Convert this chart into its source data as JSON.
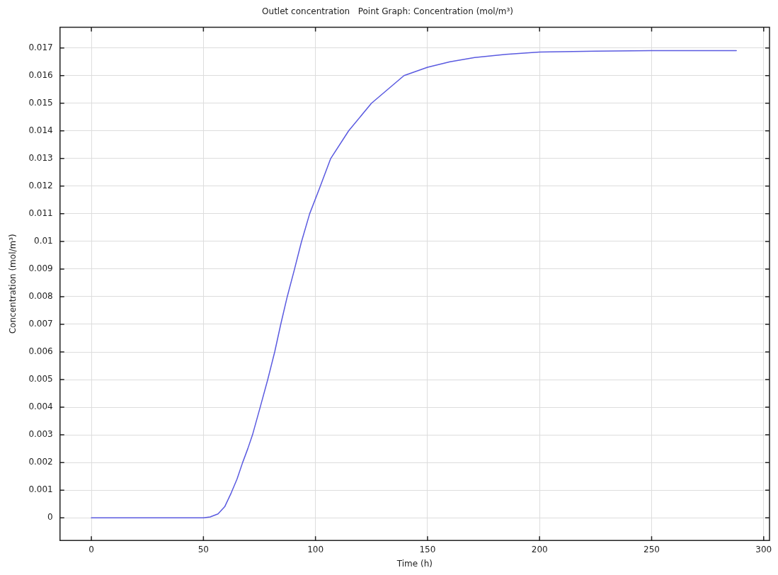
{
  "chart_data": {
    "type": "line",
    "title": "Outlet concentration   Point Graph: Concentration (mol/m³)",
    "xlabel": "Time (h)",
    "ylabel": "Concentration (mol/m³)",
    "xlim": [
      -14,
      302.6
    ],
    "xticks": [
      0,
      50,
      100,
      150,
      200,
      250,
      300
    ],
    "ylim": [
      -0.00082,
      0.01775
    ],
    "yticks": [
      0,
      0.001,
      0.002,
      0.003,
      0.004,
      0.005,
      0.006,
      0.007,
      0.008,
      0.009,
      0.01,
      0.011,
      0.012,
      0.013,
      0.014,
      0.015,
      0.016,
      0.017
    ],
    "grid": true,
    "legend": false,
    "marker": "none",
    "line_style": "solid",
    "series": [
      {
        "color": "#5a5ae0",
        "x": [
          0,
          25,
          50,
          53,
          56.5,
          59.5,
          62.4,
          65,
          67.5,
          69.8,
          71.9,
          75.5,
          78.7,
          81.8,
          84.5,
          87.4,
          90.5,
          93.7,
          97.4,
          101.7,
          106.8,
          114.8,
          125,
          139.5,
          150,
          160,
          171,
          185,
          200,
          225,
          250,
          287.8
        ],
        "values": [
          0,
          0,
          0,
          3e-05,
          0.00014,
          0.0004,
          0.0009,
          0.0014,
          0.002,
          0.0025,
          0.003,
          0.00405,
          0.005,
          0.006,
          0.007,
          0.008,
          0.00895,
          0.00997,
          0.011,
          0.0119,
          0.013,
          0.014,
          0.015,
          0.016,
          0.0163,
          0.0165,
          0.01665,
          0.01677,
          0.01685,
          0.01688,
          0.0169,
          0.0169
        ]
      }
    ]
  }
}
